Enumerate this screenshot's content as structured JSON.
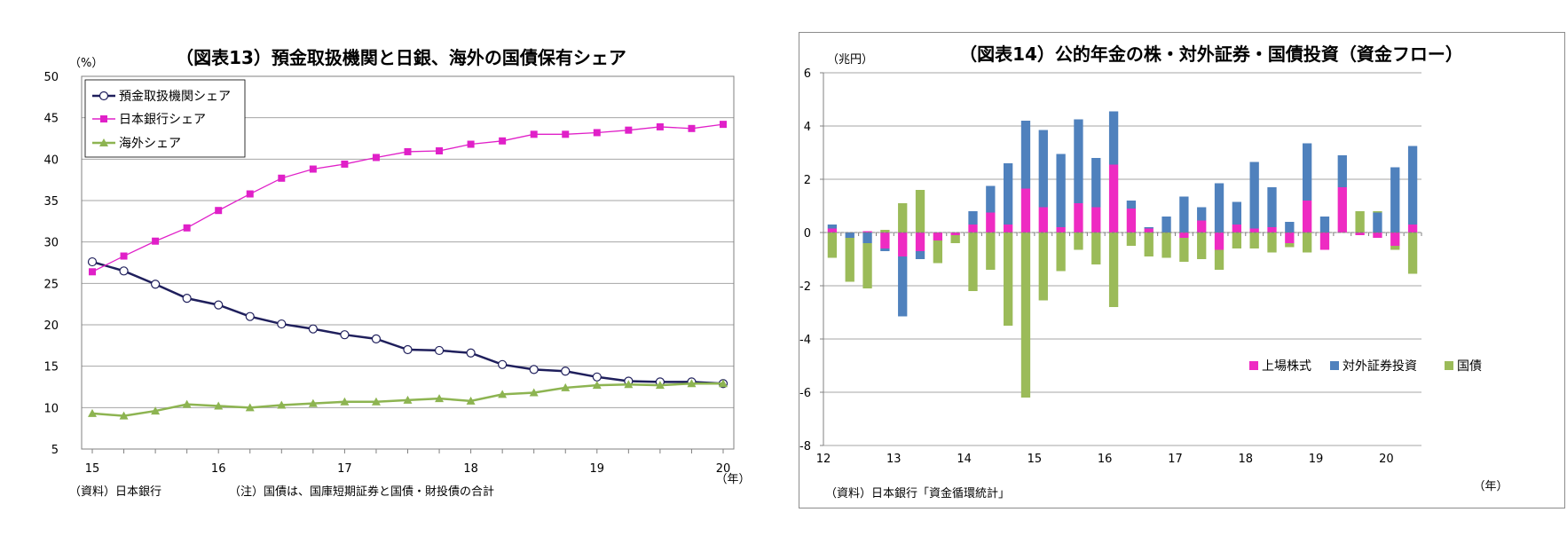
{
  "charts": [
    {
      "title": "（図表13）預金取扱機関と日銀、海外の国債保有シェア",
      "unit": "（%）",
      "x_unit": "（年）",
      "source": "（資料）日本銀行",
      "note": "（注）国債は、国庫短期証券と国債・財投債の合計",
      "legend": [
        "預金取扱機関シェア",
        "日本銀行シェア",
        "海外シェア"
      ],
      "x_tick_labels": [
        "15",
        "16",
        "17",
        "18",
        "19",
        "20"
      ],
      "y_tick_labels": [
        "5",
        "10",
        "15",
        "20",
        "25",
        "30",
        "35",
        "40",
        "45",
        "50"
      ]
    },
    {
      "title": "（図表14）公的年金の株・対外証券・国債投資（資金フロー）",
      "unit": "（兆円）",
      "x_unit": "（年）",
      "source": "（資料）日本銀行「資金循環統計」",
      "legend": [
        "上場株式",
        "対外証券投資",
        "国債"
      ],
      "x_tick_labels": [
        "12",
        "13",
        "14",
        "15",
        "16",
        "17",
        "18",
        "19",
        "20"
      ],
      "y_tick_labels": [
        "6",
        "4",
        "2",
        "0",
        "-2",
        "-4",
        "-6",
        "-8"
      ]
    }
  ],
  "chart_data": [
    {
      "type": "line",
      "title": "（図表13）預金取扱機関と日銀、海外の国債保有シェア",
      "ylabel": "（%）",
      "xlabel": "（年）",
      "ylim": [
        5,
        50
      ],
      "x_range": [
        2015,
        2020
      ],
      "x": [
        2015.0,
        2015.25,
        2015.5,
        2015.75,
        2016.0,
        2016.25,
        2016.5,
        2016.75,
        2017.0,
        2017.25,
        2017.5,
        2017.75,
        2018.0,
        2018.25,
        2018.5,
        2018.75,
        2019.0,
        2019.25,
        2019.5,
        2019.75,
        2020.0
      ],
      "grid": true,
      "legend_position": "top-left",
      "series": [
        {
          "name": "預金取扱機関シェア",
          "color": "#1f1f5c",
          "marker": "circle",
          "values": [
            27.6,
            26.5,
            24.9,
            23.2,
            22.4,
            21.0,
            20.1,
            19.5,
            18.8,
            18.3,
            17.0,
            16.9,
            16.6,
            15.2,
            14.6,
            14.4,
            13.7,
            13.2,
            13.1,
            13.1,
            12.9
          ]
        },
        {
          "name": "日本銀行シェア",
          "color": "#e020c8",
          "marker": "square",
          "values": [
            26.4,
            28.3,
            30.1,
            31.7,
            33.8,
            35.8,
            37.7,
            38.8,
            39.4,
            40.2,
            40.9,
            41.0,
            41.8,
            42.2,
            43.0,
            43.0,
            43.2,
            43.5,
            43.9,
            43.7,
            44.2
          ]
        },
        {
          "name": "海外シェア",
          "color": "#8db451",
          "marker": "triangle",
          "values": [
            9.3,
            9.0,
            9.6,
            10.4,
            10.2,
            10.0,
            10.3,
            10.5,
            10.7,
            10.7,
            10.9,
            11.1,
            10.8,
            11.6,
            11.8,
            12.4,
            12.7,
            12.8,
            12.7,
            12.9,
            12.9
          ]
        }
      ]
    },
    {
      "type": "bar",
      "stacked": true,
      "title": "（図表14）公的年金の株・対外証券・国債投資（資金フロー）",
      "ylabel": "（兆円）",
      "xlabel": "（年）",
      "ylim": [
        -8,
        6
      ],
      "grid": true,
      "legend_position": "bottom-right",
      "tick_labels": [
        "12",
        "13",
        "14",
        "15",
        "16",
        "17",
        "18",
        "19",
        "20"
      ],
      "categories": [
        "12Q1",
        "12Q2",
        "12Q3",
        "12Q4",
        "13Q1",
        "13Q2",
        "13Q3",
        "13Q4",
        "14Q1",
        "14Q2",
        "14Q3",
        "14Q4",
        "15Q1",
        "15Q2",
        "15Q3",
        "15Q4",
        "16Q1",
        "16Q2",
        "16Q3",
        "16Q4",
        "17Q1",
        "17Q2",
        "17Q3",
        "17Q4",
        "18Q1",
        "18Q2",
        "18Q3",
        "18Q4",
        "19Q1",
        "19Q2",
        "19Q3",
        "19Q4",
        "20Q1",
        "20Q2"
      ],
      "series": [
        {
          "name": "上場株式",
          "color": "#ee2bc2",
          "values": [
            0.15,
            0.0,
            0.05,
            -0.6,
            -0.9,
            -0.7,
            -0.3,
            -0.1,
            0.3,
            0.75,
            0.3,
            1.65,
            0.95,
            0.2,
            1.1,
            0.95,
            2.55,
            0.9,
            0.15,
            0.0,
            -0.2,
            0.45,
            -0.65,
            0.3,
            0.15,
            0.2,
            -0.4,
            1.2,
            -0.65,
            1.7,
            -0.1,
            -0.2,
            -0.5,
            0.3
          ]
        },
        {
          "name": "対外証券投資",
          "color": "#4f81bd",
          "values": [
            0.15,
            -0.2,
            -0.4,
            -0.1,
            -2.25,
            -0.3,
            0.0,
            0.0,
            0.5,
            1.0,
            2.3,
            2.55,
            2.9,
            2.75,
            3.15,
            1.85,
            2.0,
            0.3,
            0.05,
            0.6,
            1.35,
            0.5,
            1.85,
            0.85,
            2.5,
            1.5,
            0.4,
            2.15,
            0.6,
            1.2,
            0.0,
            0.75,
            2.45,
            2.95
          ]
        },
        {
          "name": "国債",
          "color": "#9bbb59",
          "values": [
            -0.95,
            -1.65,
            -1.7,
            0.1,
            1.1,
            1.6,
            -0.85,
            -0.3,
            -2.2,
            -1.4,
            -3.5,
            -6.2,
            -2.55,
            -1.45,
            -0.65,
            -1.2,
            -2.8,
            -0.5,
            -0.9,
            -0.95,
            -0.9,
            -1.0,
            -0.75,
            -0.6,
            -0.6,
            -0.75,
            -0.15,
            -0.75,
            0.0,
            0.0,
            0.8,
            0.05,
            -0.15,
            -1.55
          ]
        }
      ]
    }
  ]
}
